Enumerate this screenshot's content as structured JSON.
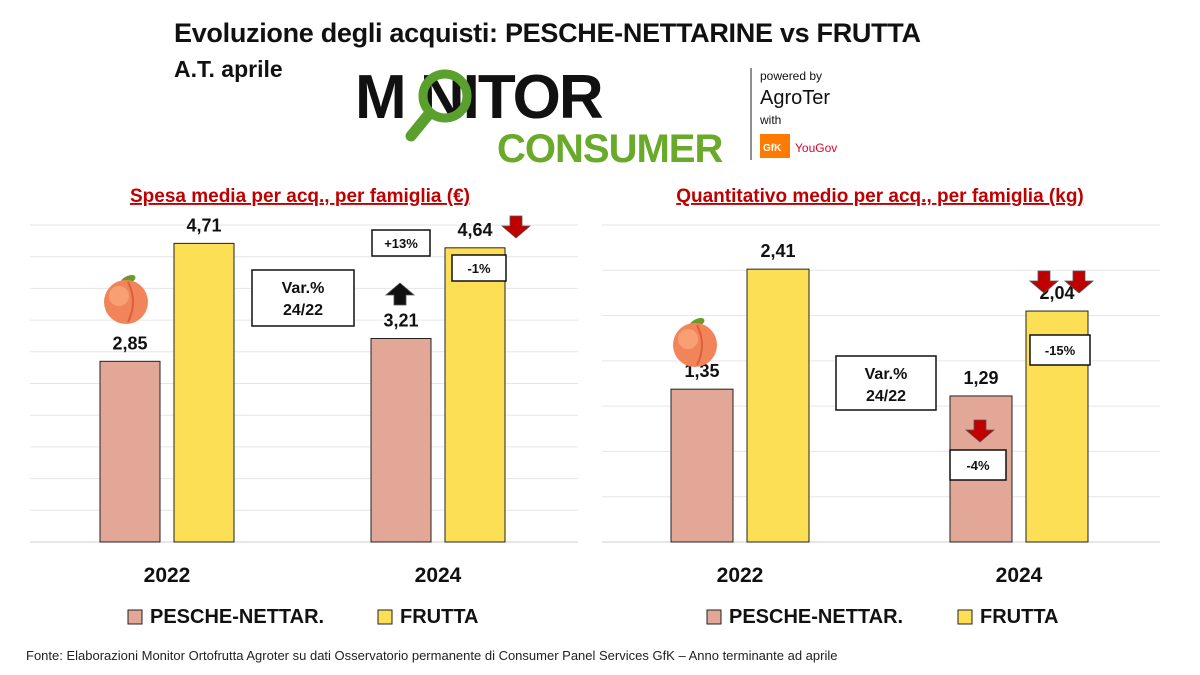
{
  "header": {
    "title": "Evoluzione degli acquisti: PESCHE-NETTARINE vs FRUTTA",
    "subtitle": "A.T. aprile"
  },
  "logo": {
    "monitor": "M NITOR",
    "consumer": "CONSUMER",
    "powered_by": "powered by",
    "agroter": "AgroTer",
    "with": "with",
    "gfk": "GfK",
    "yougov": "YouGov"
  },
  "colors": {
    "pesche": "#e2a796",
    "frutta": "#fcdf55",
    "title_red": "#c00000",
    "arrow_red": "#c00000",
    "arrow_black": "#111111"
  },
  "chart_data": [
    {
      "type": "bar",
      "title": "Spesa media per acq., per famiglia (€)",
      "categories": [
        "2022",
        "2024"
      ],
      "series": [
        {
          "name": "PESCHE-NETTAR.",
          "values": [
            2.85,
            3.21
          ],
          "labels": [
            "2,85",
            "3,21"
          ]
        },
        {
          "name": "FRUTTA",
          "values": [
            4.71,
            4.64
          ],
          "labels": [
            "4,71",
            "4,64"
          ]
        }
      ],
      "ylim": [
        0,
        5
      ],
      "grid": true,
      "legend": "bottom",
      "var_label": [
        "Var.%",
        "24/22"
      ],
      "changes": [
        {
          "series": "PESCHE-NETTAR.",
          "text": "+13%",
          "direction": "up"
        },
        {
          "series": "FRUTTA",
          "text": "-1%",
          "direction": "down"
        }
      ]
    },
    {
      "type": "bar",
      "title": "Quantitativo medio per acq., per famiglia (kg)",
      "categories": [
        "2022",
        "2024"
      ],
      "series": [
        {
          "name": "PESCHE-NETTAR.",
          "values": [
            1.35,
            1.29
          ],
          "labels": [
            "1,35",
            "1,29"
          ]
        },
        {
          "name": "FRUTTA",
          "values": [
            2.41,
            2.04
          ],
          "labels": [
            "2,41",
            "2,04"
          ]
        }
      ],
      "ylim": [
        0,
        2.8
      ],
      "grid": true,
      "legend": "bottom",
      "var_label": [
        "Var.%",
        "24/22"
      ],
      "changes": [
        {
          "series": "PESCHE-NETTAR.",
          "text": "-4%",
          "direction": "down"
        },
        {
          "series": "FRUTTA",
          "text": "-15%",
          "direction": "down2"
        }
      ]
    }
  ],
  "footer": "Fonte: Elaborazioni Monitor Ortofrutta Agroter su dati Osservatorio permanente di Consumer Panel Services GfK – Anno terminante ad aprile"
}
